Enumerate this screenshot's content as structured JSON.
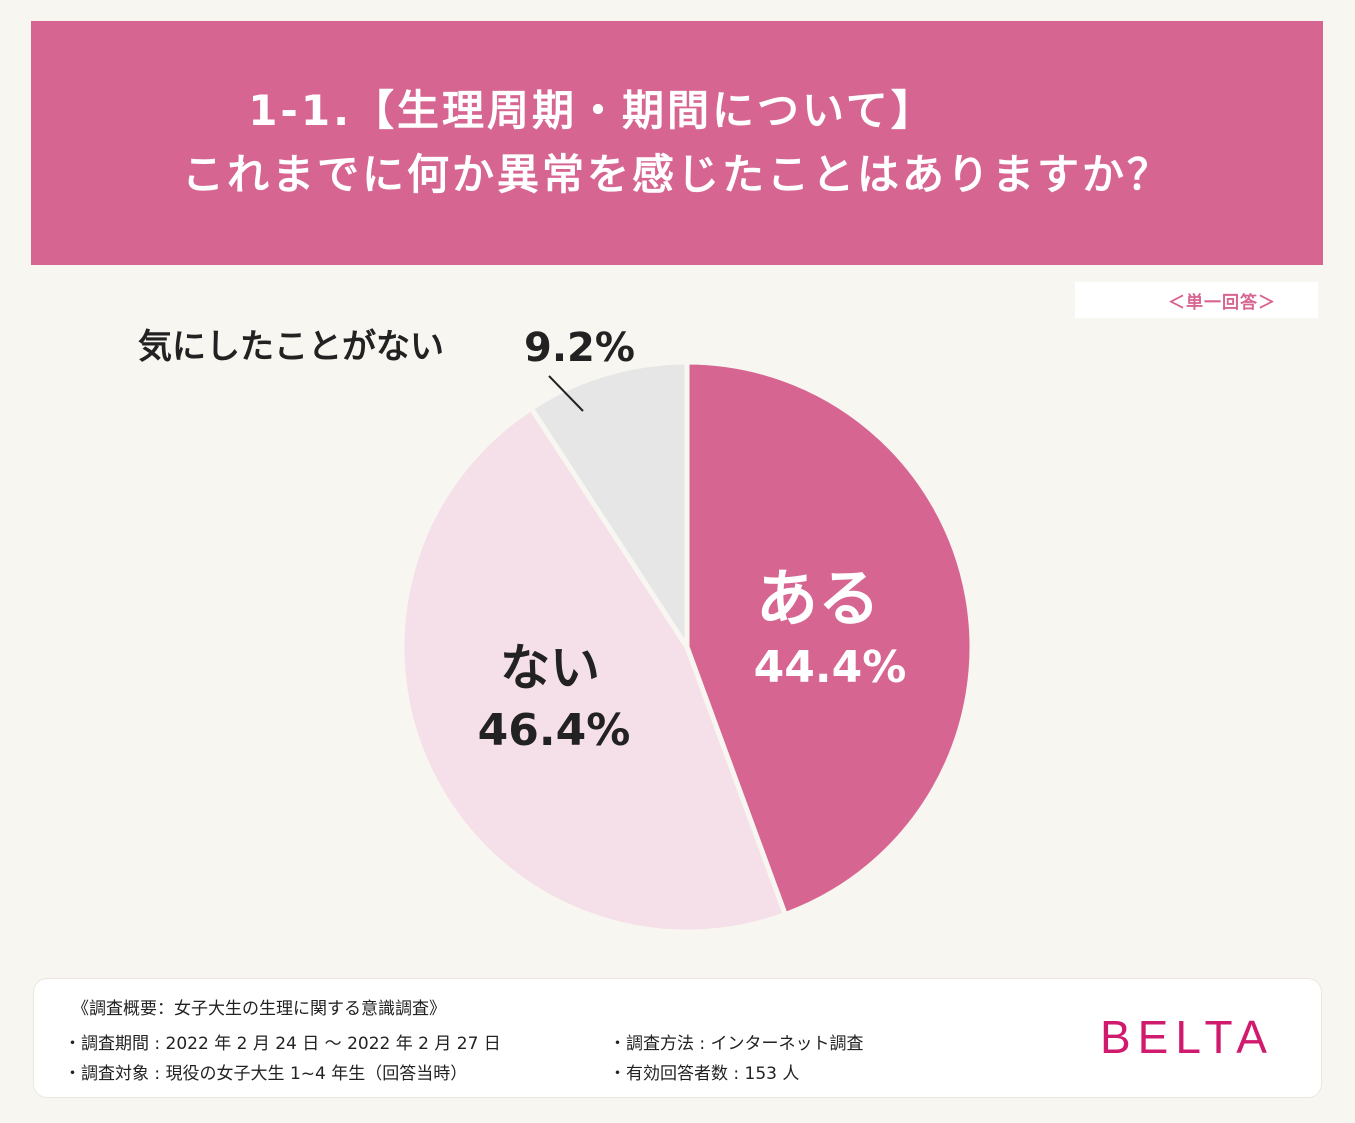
{
  "header": {
    "line1": "1-1.【生理周期・期間について】",
    "line2": "これまでに何か異常を感じたことはありますか？"
  },
  "answer_type": "＜単一回答＞",
  "chart_data": {
    "type": "pie",
    "title": "これまでに何か異常を感じたことはありますか？",
    "start_angle_deg": 0,
    "direction": "clockwise",
    "slices": [
      {
        "name": "ある",
        "value": 44.4,
        "label_text": "44.4%",
        "color": "#d76592",
        "text_color": "#ffffff"
      },
      {
        "name": "ない",
        "value": 46.4,
        "label_text": "46.4%",
        "color": "#f5dfe8",
        "text_color": "#222222"
      },
      {
        "name": "気にしたことがない",
        "value": 9.2,
        "label_text": "9.2%",
        "color": "#e6e6e6",
        "text_color": "#222222"
      }
    ]
  },
  "footer": {
    "heading": "《調査概要：女子大生の生理に関する意識調査》",
    "period": "・調査期間 : 2022 年 2 月 24 日 〜 2022 年 2 月 27 日",
    "target": "・調査対象 : 現役の女子大生 1~4 年生（回答当時）",
    "method": "・調査方法 : インターネット調査",
    "respondents": "・有効回答者数 : 153 人"
  },
  "brand": "BELTA"
}
